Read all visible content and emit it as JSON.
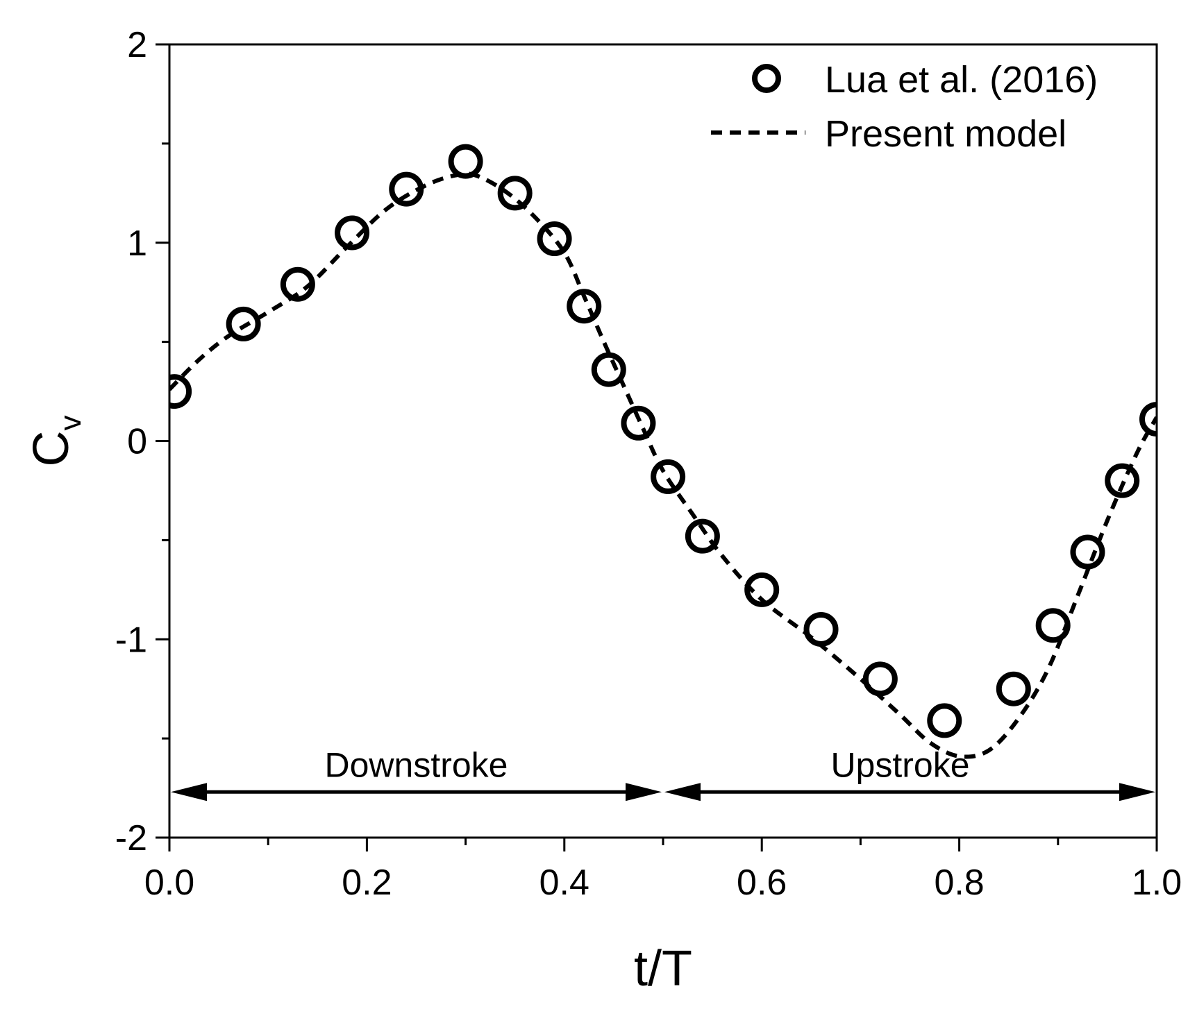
{
  "chart_data": {
    "type": "scatter",
    "xlabel": "t/T",
    "ylabel": {
      "main": "C",
      "sub": "v"
    },
    "xlim": [
      0,
      1
    ],
    "ylim": [
      -2,
      2
    ],
    "x_ticks": [
      0.0,
      0.2,
      0.4,
      0.6,
      0.8,
      1.0
    ],
    "x_tick_labels": [
      "0.0",
      "0.2",
      "0.4",
      "0.6",
      "0.8",
      "1.0"
    ],
    "y_ticks": [
      -2,
      -1,
      0,
      1,
      2
    ],
    "y_tick_labels": [
      "-2",
      "-1",
      "0",
      "1",
      "2"
    ],
    "grid": false,
    "legend": "top-right",
    "series": [
      {
        "name": "Lua et al. (2016)",
        "style": "open-circle",
        "color": "#000000",
        "points": [
          [
            0.005,
            0.25
          ],
          [
            0.075,
            0.59
          ],
          [
            0.13,
            0.79
          ],
          [
            0.185,
            1.05
          ],
          [
            0.24,
            1.27
          ],
          [
            0.3,
            1.41
          ],
          [
            0.35,
            1.25
          ],
          [
            0.39,
            1.02
          ],
          [
            0.42,
            0.68
          ],
          [
            0.445,
            0.36
          ],
          [
            0.475,
            0.09
          ],
          [
            0.505,
            -0.18
          ],
          [
            0.54,
            -0.48
          ],
          [
            0.6,
            -0.75
          ],
          [
            0.66,
            -0.95
          ],
          [
            0.72,
            -1.2
          ],
          [
            0.785,
            -1.41
          ],
          [
            0.855,
            -1.25
          ],
          [
            0.895,
            -0.93
          ],
          [
            0.93,
            -0.56
          ],
          [
            0.965,
            -0.2
          ],
          [
            1.0,
            0.11
          ]
        ]
      },
      {
        "name": "Present model",
        "style": "dashed-line",
        "color": "#000000",
        "points": [
          [
            0.0,
            0.26
          ],
          [
            0.03,
            0.41
          ],
          [
            0.06,
            0.53
          ],
          [
            0.1,
            0.65
          ],
          [
            0.14,
            0.78
          ],
          [
            0.18,
            0.98
          ],
          [
            0.22,
            1.17
          ],
          [
            0.26,
            1.29
          ],
          [
            0.29,
            1.34
          ],
          [
            0.31,
            1.34
          ],
          [
            0.34,
            1.26
          ],
          [
            0.37,
            1.13
          ],
          [
            0.4,
            0.95
          ],
          [
            0.42,
            0.73
          ],
          [
            0.44,
            0.5
          ],
          [
            0.46,
            0.28
          ],
          [
            0.48,
            0.06
          ],
          [
            0.5,
            -0.15
          ],
          [
            0.53,
            -0.37
          ],
          [
            0.56,
            -0.58
          ],
          [
            0.6,
            -0.8
          ],
          [
            0.65,
            -0.99
          ],
          [
            0.7,
            -1.2
          ],
          [
            0.74,
            -1.38
          ],
          [
            0.77,
            -1.52
          ],
          [
            0.8,
            -1.59
          ],
          [
            0.83,
            -1.56
          ],
          [
            0.86,
            -1.4
          ],
          [
            0.89,
            -1.15
          ],
          [
            0.92,
            -0.78
          ],
          [
            0.95,
            -0.4
          ],
          [
            0.98,
            -0.06
          ],
          [
            1.0,
            0.12
          ]
        ]
      }
    ],
    "annotations": [
      {
        "text": "Downstroke",
        "x_range": [
          0.0,
          0.5
        ],
        "y": -1.77
      },
      {
        "text": "Upstroke",
        "x_range": [
          0.5,
          1.0
        ],
        "y": -1.77
      }
    ]
  }
}
